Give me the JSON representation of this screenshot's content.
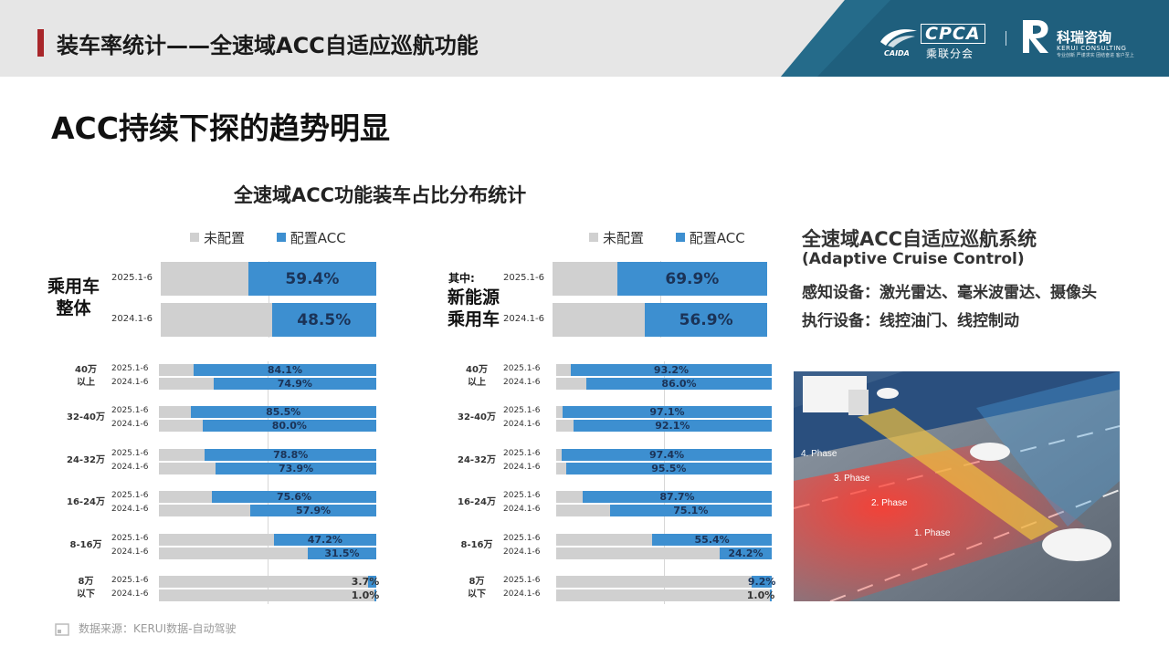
{
  "header": {
    "title": "装车率统计——全速域ACC自适应巡航功能",
    "cpca_logo": "CPCA",
    "cpca_cn": "乘联分会",
    "cpca_sub": "CAIDA",
    "kerui_name": "科瑞咨询",
    "kerui_en": "KERUI CONSULTING",
    "kerui_tag": "专业创新 严谨求实 团结奋进 客户至上"
  },
  "headline": "ACC持续下探的趋势明显",
  "chart_title": "全速域ACC功能装车占比分布统计",
  "legend": {
    "unconfigured": "未配置",
    "configured": "配置ACC"
  },
  "colors": {
    "unconfigured": "#d0d0d0",
    "configured": "#3d8fd0",
    "header_accent": "#a8262a",
    "header_band": "#1f5f7d"
  },
  "left_group_label": [
    "乘用车",
    "整体"
  ],
  "right_group_prefix": "其中:",
  "right_group_label": [
    "新能源",
    "乘用车"
  ],
  "chart_data": [
    {
      "type": "bar",
      "title": "乘用车整体",
      "series": [
        {
          "name": "配置ACC",
          "values": [
            59.4,
            48.5
          ]
        }
      ],
      "categories": [
        "2025.1-6",
        "2024.1-6"
      ],
      "labels": [
        "59.4%",
        "48.5%"
      ],
      "xlim": [
        0,
        100
      ]
    },
    {
      "type": "bar",
      "title": "乘用车整体 价格段",
      "xlim": [
        0,
        100
      ],
      "groups": [
        {
          "label": [
            "40万",
            "以上"
          ],
          "rows": [
            {
              "year": "2025.1-6",
              "value": 84.1,
              "label": "84.1%"
            },
            {
              "year": "2024.1-6",
              "value": 74.9,
              "label": "74.9%"
            }
          ]
        },
        {
          "label": [
            "32-40万"
          ],
          "rows": [
            {
              "year": "2025.1-6",
              "value": 85.5,
              "label": "85.5%"
            },
            {
              "year": "2024.1-6",
              "value": 80.0,
              "label": "80.0%"
            }
          ]
        },
        {
          "label": [
            "24-32万"
          ],
          "rows": [
            {
              "year": "2025.1-6",
              "value": 78.8,
              "label": "78.8%"
            },
            {
              "year": "2024.1-6",
              "value": 73.9,
              "label": "73.9%"
            }
          ]
        },
        {
          "label": [
            "16-24万"
          ],
          "rows": [
            {
              "year": "2025.1-6",
              "value": 75.6,
              "label": "75.6%"
            },
            {
              "year": "2024.1-6",
              "value": 57.9,
              "label": "57.9%"
            }
          ]
        },
        {
          "label": [
            "8-16万"
          ],
          "rows": [
            {
              "year": "2025.1-6",
              "value": 47.2,
              "label": "47.2%"
            },
            {
              "year": "2024.1-6",
              "value": 31.5,
              "label": "31.5%"
            }
          ]
        },
        {
          "label": [
            "8万",
            "以下"
          ],
          "rows": [
            {
              "year": "2025.1-6",
              "value": 3.7,
              "label": "3.7%"
            },
            {
              "year": "2024.1-6",
              "value": 1.0,
              "label": "1.0%"
            }
          ]
        }
      ]
    },
    {
      "type": "bar",
      "title": "新能源乘用车",
      "series": [
        {
          "name": "配置ACC",
          "values": [
            69.9,
            56.9
          ]
        }
      ],
      "categories": [
        "2025.1-6",
        "2024.1-6"
      ],
      "labels": [
        "69.9%",
        "56.9%"
      ],
      "xlim": [
        0,
        100
      ]
    },
    {
      "type": "bar",
      "title": "新能源乘用车 价格段",
      "xlim": [
        0,
        100
      ],
      "groups": [
        {
          "label": [
            "40万",
            "以上"
          ],
          "rows": [
            {
              "year": "2025.1-6",
              "value": 93.2,
              "label": "93.2%"
            },
            {
              "year": "2024.1-6",
              "value": 86.0,
              "label": "86.0%"
            }
          ]
        },
        {
          "label": [
            "32-40万"
          ],
          "rows": [
            {
              "year": "2025.1-6",
              "value": 97.1,
              "label": "97.1%"
            },
            {
              "year": "2024.1-6",
              "value": 92.1,
              "label": "92.1%"
            }
          ]
        },
        {
          "label": [
            "24-32万"
          ],
          "rows": [
            {
              "year": "2025.1-6",
              "value": 97.4,
              "label": "97.4%"
            },
            {
              "year": "2024.1-6",
              "value": 95.5,
              "label": "95.5%"
            }
          ]
        },
        {
          "label": [
            "16-24万"
          ],
          "rows": [
            {
              "year": "2025.1-6",
              "value": 87.7,
              "label": "87.7%"
            },
            {
              "year": "2024.1-6",
              "value": 75.1,
              "label": "75.1%"
            }
          ]
        },
        {
          "label": [
            "8-16万"
          ],
          "rows": [
            {
              "year": "2025.1-6",
              "value": 55.4,
              "label": "55.4%"
            },
            {
              "year": "2024.1-6",
              "value": 24.2,
              "label": "24.2%"
            }
          ]
        },
        {
          "label": [
            "8万",
            "以下"
          ],
          "rows": [
            {
              "year": "2025.1-6",
              "value": 9.2,
              "label": "9.2%"
            },
            {
              "year": "2024.1-6",
              "value": 1.0,
              "label": "1.0%"
            }
          ]
        }
      ]
    }
  ],
  "side": {
    "title": "全速域ACC自适应巡航系统",
    "subtitle": "(Adaptive Cruise Control)",
    "lines": [
      "感知设备：激光雷达、毫米波雷达、摄像头",
      "执行设备：线控油门、线控制动"
    ],
    "phases": [
      "4. Phase",
      "3. Phase",
      "2. Phase",
      "1. Phase"
    ]
  },
  "source": "数据来源：KERUI数据-自动驾驶"
}
